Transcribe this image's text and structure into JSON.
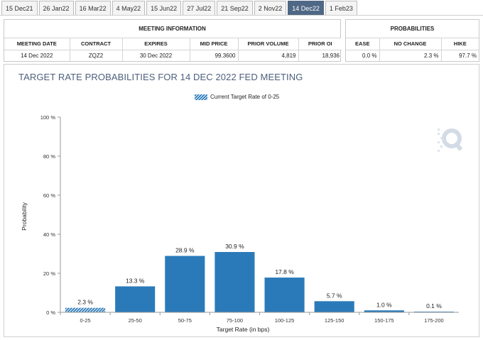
{
  "tabs": [
    {
      "label": "15 Dec21",
      "active": false
    },
    {
      "label": "26 Jan22",
      "active": false
    },
    {
      "label": "16 Mar22",
      "active": false
    },
    {
      "label": "4 May22",
      "active": false
    },
    {
      "label": "15 Jun22",
      "active": false
    },
    {
      "label": "27 Jul22",
      "active": false
    },
    {
      "label": "21 Sep22",
      "active": false
    },
    {
      "label": "2 Nov22",
      "active": false
    },
    {
      "label": "14 Dec22",
      "active": true
    },
    {
      "label": "1 Feb23",
      "active": false
    }
  ],
  "meeting_info": {
    "title": "MEETING INFORMATION",
    "headers": [
      "MEETING DATE",
      "CONTRACT",
      "EXPIRES",
      "MID PRICE",
      "PRIOR VOLUME",
      "PRIOR OI"
    ],
    "row": [
      "14 Dec 2022",
      "ZQZ2",
      "30 Dec 2022",
      "99.3600",
      "4,819",
      "18,936"
    ]
  },
  "probabilities": {
    "title": "PROBABILITIES",
    "headers": [
      "EASE",
      "NO CHANGE",
      "HIKE"
    ],
    "row": [
      "0.0 %",
      "2.3 %",
      "97.7 %"
    ]
  },
  "chart_title": "TARGET RATE PROBABILITIES FOR 14 DEC 2022 FED MEETING",
  "legend_label": "Current Target Rate of 0-25",
  "colors": {
    "bar": "#2a7ab9",
    "current_bar": "#2a7ab9",
    "title": "#4d5f7c",
    "tab_active": "#4f6886"
  },
  "watermark_icon": "cme-q-logo-icon",
  "chart_data": {
    "type": "bar",
    "categories": [
      "0-25",
      "25-50",
      "50-75",
      "75-100",
      "100-125",
      "125-150",
      "150-175",
      "175-200"
    ],
    "values": [
      2.3,
      13.3,
      28.9,
      30.9,
      17.8,
      5.7,
      1.0,
      0.1
    ],
    "value_labels": [
      "2.3 %",
      "13.3 %",
      "28.9 %",
      "30.9 %",
      "17.8 %",
      "5.7 %",
      "1.0 %",
      "0.1 %"
    ],
    "highlighted_category": "0-25",
    "xlabel": "Target Rate (in bps)",
    "ylabel": "Probability",
    "ylim": [
      0,
      100
    ],
    "yticks": [
      0,
      20,
      40,
      60,
      80,
      100
    ],
    "ytick_labels": [
      "0 %",
      "20 %",
      "40 %",
      "60 %",
      "80 %",
      "100 %"
    ],
    "grid": false,
    "legend": "top-center"
  }
}
